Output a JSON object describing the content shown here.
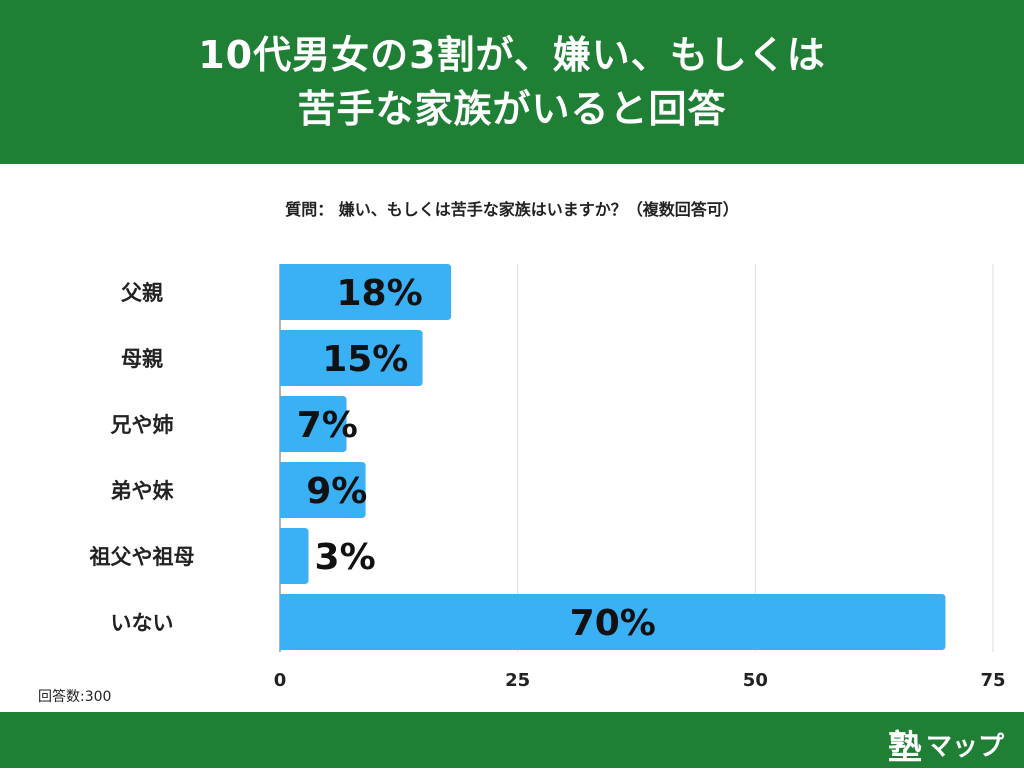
{
  "header": {
    "title_line1": "10代男女の3割が、嫌い、もしくは",
    "title_line2": "苦手な家族がいると回答"
  },
  "question": "質問： 嫌い、もしくは苦手な家族はいますか？（複数回答可）",
  "sample_note": "回答数:300",
  "logo": {
    "kanji": "塾",
    "kana": "マップ"
  },
  "colors": {
    "brand": "#1f7f35",
    "bar": "#3ab0f5"
  },
  "chart_data": {
    "type": "bar",
    "orientation": "horizontal",
    "title": "質問： 嫌い、もしくは苦手な家族はいますか？（複数回答可）",
    "categories": [
      "父親",
      "母親",
      "兄や姉",
      "弟や妹",
      "祖父や祖母",
      "いない"
    ],
    "values": [
      18,
      15,
      7,
      9,
      3,
      70
    ],
    "labels": [
      "18%",
      "15%",
      "7%",
      "9%",
      "3%",
      "70%"
    ],
    "unit": "%",
    "xlim": [
      0,
      75
    ],
    "xticks": [
      0,
      25,
      50,
      75
    ],
    "xtick_labels": [
      "0",
      "25",
      "50",
      "75"
    ],
    "grid": true
  }
}
